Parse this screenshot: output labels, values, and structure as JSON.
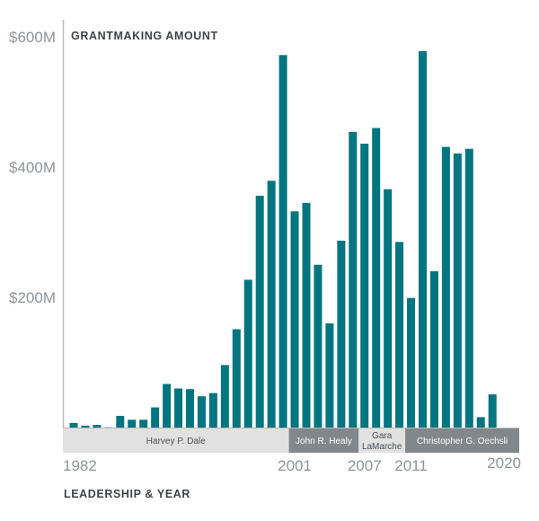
{
  "chart_data": {
    "type": "bar",
    "title": "GRANTMAKING AMOUNT",
    "xlabel": "LEADERSHIP & YEAR",
    "ylabel": "",
    "ylim": [
      0,
      600
    ],
    "y_ticks": [
      {
        "value": 200,
        "label": "$200M"
      },
      {
        "value": 400,
        "label": "$400M"
      },
      {
        "value": 600,
        "label": "$600M"
      }
    ],
    "x_ticks": [
      {
        "year": 1982,
        "label": "1982"
      },
      {
        "year": 2001,
        "label": "2001"
      },
      {
        "year": 2007,
        "label": "2007"
      },
      {
        "year": 2011,
        "label": "2011"
      },
      {
        "year": 2020,
        "label": "2020"
      }
    ],
    "grid": false,
    "categories": [
      1982,
      1983,
      1984,
      1985,
      1986,
      1987,
      1988,
      1989,
      1990,
      1991,
      1992,
      1993,
      1994,
      1995,
      1996,
      1997,
      1998,
      1999,
      2000,
      2001,
      2002,
      2003,
      2004,
      2005,
      2006,
      2007,
      2008,
      2009,
      2010,
      2011,
      2012,
      2013,
      2014,
      2015,
      2016,
      2017,
      2018,
      2019,
      2020
    ],
    "values": [
      7,
      3,
      4,
      0.5,
      18,
      12,
      12,
      31,
      67,
      60,
      59,
      48,
      53,
      96,
      151,
      227,
      356,
      379,
      572,
      332,
      345,
      250,
      160,
      287,
      454,
      436,
      460,
      366,
      285,
      199,
      578,
      240,
      431,
      421,
      428,
      16,
      51,
      0,
      0
    ],
    "leadership": [
      {
        "name": "Harvey P. Dale",
        "start": 1982,
        "end": 2000,
        "shade": "light"
      },
      {
        "name": "John R. Healy",
        "start": 2001,
        "end": 2006,
        "shade": "dark"
      },
      {
        "name": "Gara LaMarche",
        "lines": [
          "Gara",
          "LaMarche"
        ],
        "start": 2007,
        "end": 2010,
        "shade": "light"
      },
      {
        "name": "Christopher G. Oechsli",
        "start": 2011,
        "end": 2020,
        "shade": "dark"
      }
    ],
    "colors": {
      "bar": "#017580",
      "band_light": "#e1e1e1",
      "band_dark": "#82878b",
      "band_light_text": "#4a4f54",
      "band_dark_text": "#ffffff",
      "axis": "#b9bcbf"
    }
  }
}
